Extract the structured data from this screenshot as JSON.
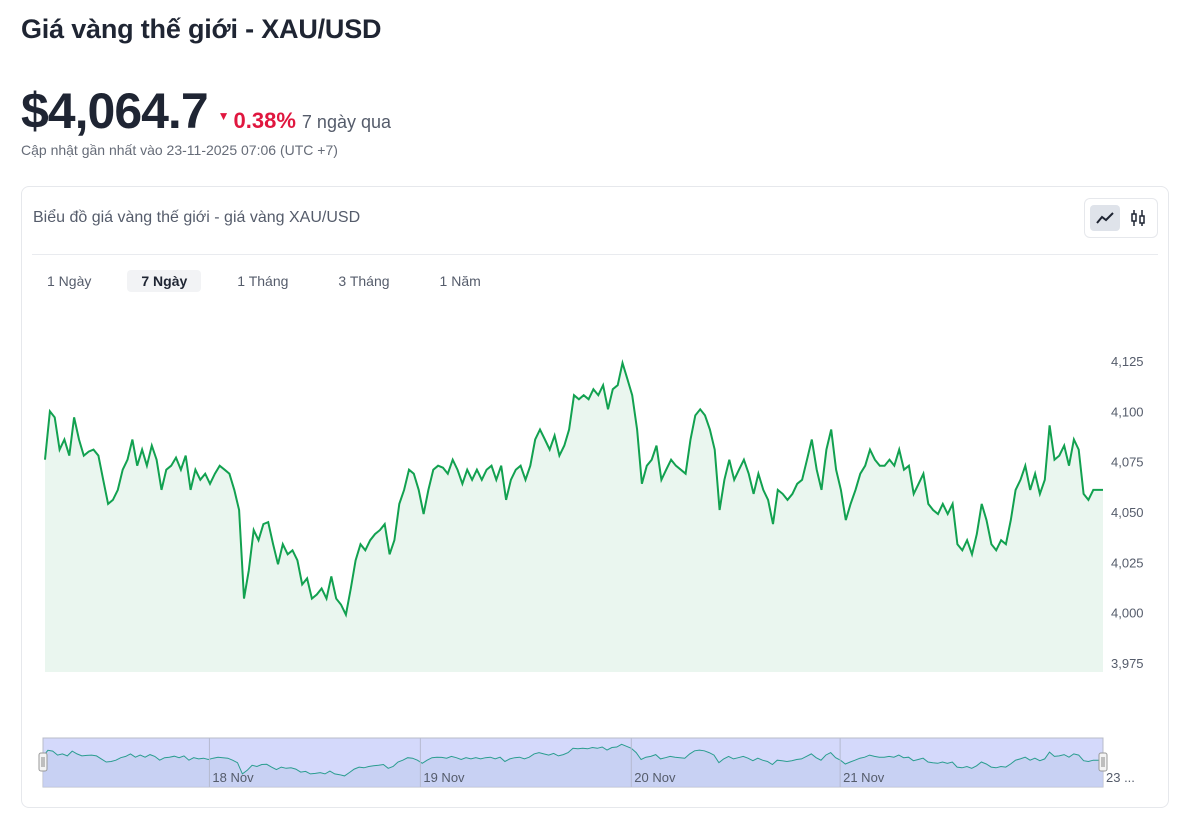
{
  "header": {
    "title": "Giá vàng thế giới - XAU/USD",
    "price": "$4,064.7",
    "change_pct": "0.38%",
    "change_direction": "down",
    "period": "7 ngày qua",
    "updated": "Cập nhật gần nhất vào 23-11-2025 07:06 (UTC +7)"
  },
  "card": {
    "title": "Biểu đồ giá vàng thế giới - giá vàng XAU/USD",
    "chart_types": [
      "line-chart-icon",
      "candlestick-icon"
    ],
    "active_chart_type": "line-chart-icon",
    "ranges": [
      "1 Ngày",
      "7 Ngày",
      "1 Tháng",
      "3 Tháng",
      "1 Năm"
    ],
    "active_range": "7 Ngày"
  },
  "colors": {
    "line": "#12a150",
    "fill": "#eaf6ef",
    "nav_bg": "#d4d9fb",
    "nav_line": "#2a9d8f",
    "down": "#e0173f"
  },
  "chart_data": {
    "type": "area",
    "title": "",
    "ylim": [
      3975,
      4125
    ],
    "yticks": [
      "4,125",
      "4,100",
      "4,075",
      "4,050",
      "4,025",
      "4,000",
      "3,975"
    ],
    "ytick_values": [
      4125,
      4100,
      4075,
      4050,
      4025,
      4000,
      3975
    ],
    "navigator_labels": [
      "18 Nov",
      "19 Nov",
      "20 Nov",
      "21 Nov",
      "23 ..."
    ],
    "navigator_label_positions": [
      0.157,
      0.356,
      0.555,
      0.752,
      1.0
    ],
    "values": [
      4076,
      4100,
      4097,
      4081,
      4086,
      4078,
      4097,
      4086,
      4078,
      4080,
      4081,
      4078,
      4066,
      4054,
      4056,
      4061,
      4071,
      4076,
      4086,
      4073,
      4081,
      4073,
      4083,
      4076,
      4061,
      4071,
      4073,
      4077,
      4071,
      4078,
      4061,
      4071,
      4066,
      4069,
      4064,
      4069,
      4073,
      4071,
      4069,
      4061,
      4051,
      4007,
      4021,
      4041,
      4036,
      4044,
      4045,
      4034,
      4024,
      4034,
      4029,
      4031,
      4026,
      4014,
      4017,
      4007,
      4009,
      4012,
      4007,
      4018,
      4007,
      4004,
      3999,
      4012,
      4026,
      4034,
      4031,
      4036,
      4039,
      4041,
      4044,
      4029,
      4036,
      4054,
      4061,
      4071,
      4069,
      4061,
      4049,
      4061,
      4071,
      4073,
      4072,
      4069,
      4076,
      4071,
      4064,
      4071,
      4066,
      4071,
      4066,
      4071,
      4073,
      4066,
      4073,
      4056,
      4066,
      4071,
      4073,
      4066,
      4073,
      4086,
      4091,
      4086,
      4081,
      4088,
      4078,
      4083,
      4091,
      4108,
      4106,
      4108,
      4106,
      4111,
      4108,
      4113,
      4101,
      4111,
      4113,
      4124,
      4116,
      4108,
      4091,
      4064,
      4073,
      4076,
      4083,
      4066,
      4071,
      4076,
      4073,
      4071,
      4069,
      4086,
      4098,
      4101,
      4098,
      4091,
      4081,
      4051,
      4066,
      4076,
      4066,
      4071,
      4076,
      4069,
      4059,
      4069,
      4061,
      4056,
      4044,
      4061,
      4059,
      4056,
      4059,
      4064,
      4066,
      4076,
      4086,
      4071,
      4061,
      4081,
      4091,
      4071,
      4061,
      4046,
      4054,
      4061,
      4069,
      4073,
      4081,
      4076,
      4073,
      4073,
      4076,
      4073,
      4081,
      4071,
      4073,
      4059,
      4064,
      4069,
      4054,
      4051,
      4049,
      4054,
      4049,
      4054,
      4034,
      4031,
      4036,
      4029,
      4039,
      4054,
      4046,
      4034,
      4031,
      4036,
      4034,
      4046,
      4061,
      4066,
      4073,
      4061,
      4069,
      4059,
      4066,
      4093,
      4076,
      4078,
      4083,
      4073,
      4086,
      4081,
      4059,
      4056,
      4061,
      4061,
      4061
    ]
  }
}
